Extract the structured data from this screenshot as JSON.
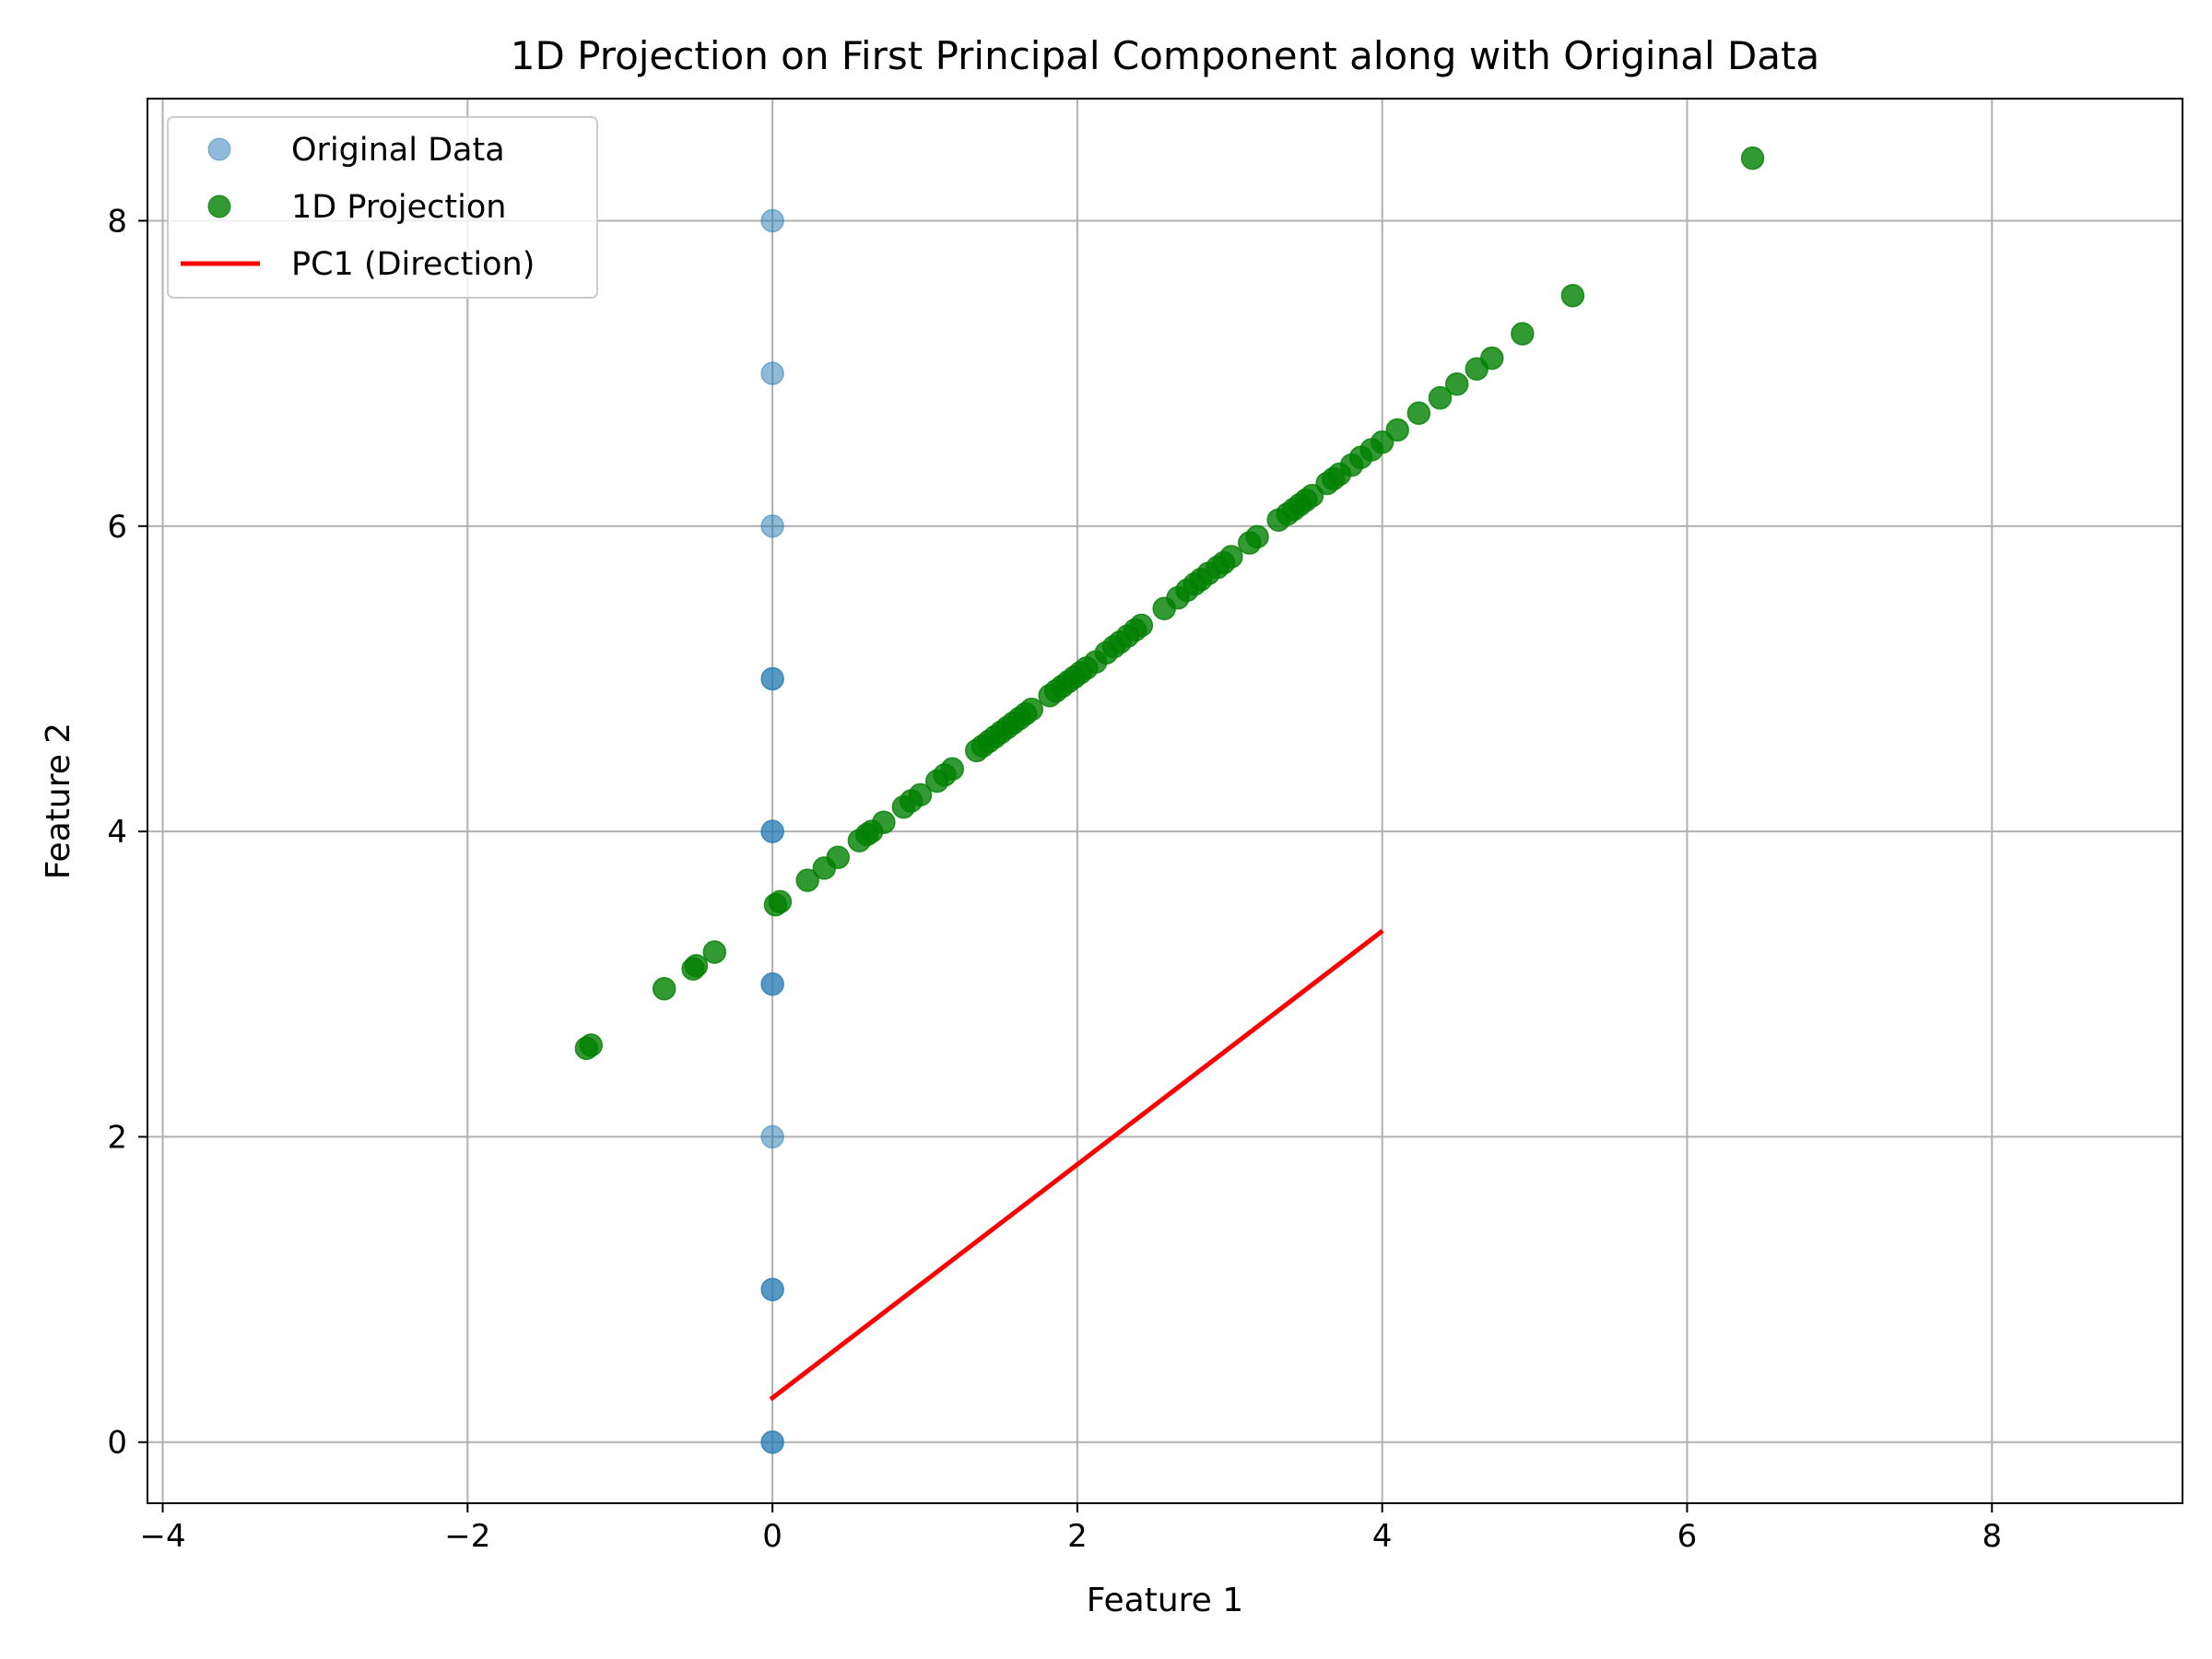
{
  "chart_data": {
    "type": "scatter",
    "title": "1D Projection on First Principal Component along with Original Data",
    "xlabel": "Feature 1",
    "ylabel": "Feature 2",
    "xlim": [
      -4.1,
      9.25
    ],
    "ylim": [
      -0.4,
      8.8
    ],
    "xticks": [
      -4,
      -2,
      0,
      2,
      4,
      6,
      8
    ],
    "yticks": [
      0,
      2,
      4,
      6,
      8
    ],
    "xtick_labels": [
      "−4",
      "−2",
      "0",
      "2",
      "4",
      "6",
      "8"
    ],
    "ytick_labels": [
      "0",
      "2",
      "4",
      "6",
      "8"
    ],
    "grid": true,
    "legend_position": "top-left",
    "colors": {
      "original": "#1f77b4",
      "projection": "#008000",
      "pc1": "#ff0000",
      "grid": "#b0b0b0"
    },
    "series": [
      {
        "name": "Original Data",
        "kind": "scatter",
        "opacity": 0.5,
        "points": [
          [
            0,
            0
          ],
          [
            0,
            1
          ],
          [
            0,
            2
          ],
          [
            0,
            3
          ],
          [
            0,
            4
          ],
          [
            0,
            5
          ],
          [
            0,
            6
          ],
          [
            0,
            7
          ],
          [
            0,
            8
          ],
          [
            0,
            0
          ],
          [
            0,
            1
          ],
          [
            0,
            3
          ],
          [
            0,
            4
          ],
          [
            0,
            5
          ]
        ]
      },
      {
        "name": "1D Projection",
        "kind": "scatter",
        "opacity": 0.8,
        "points": [
          [
            -1.22,
            2.58
          ],
          [
            -1.19,
            2.6
          ],
          [
            -0.71,
            2.97
          ],
          [
            -0.52,
            3.1
          ],
          [
            -0.5,
            3.12
          ],
          [
            -0.38,
            3.21
          ],
          [
            0.02,
            3.52
          ],
          [
            0.05,
            3.54
          ],
          [
            0.23,
            3.68
          ],
          [
            0.34,
            3.76
          ],
          [
            0.43,
            3.83
          ],
          [
            0.57,
            3.94
          ],
          [
            0.62,
            3.98
          ],
          [
            0.65,
            4.0
          ],
          [
            0.73,
            4.06
          ],
          [
            0.86,
            4.16
          ],
          [
            0.91,
            4.2
          ],
          [
            0.97,
            4.24
          ],
          [
            1.08,
            4.33
          ],
          [
            1.13,
            4.37
          ],
          [
            1.18,
            4.41
          ],
          [
            1.34,
            4.53
          ],
          [
            1.38,
            4.56
          ],
          [
            1.42,
            4.59
          ],
          [
            1.46,
            4.62
          ],
          [
            1.5,
            4.65
          ],
          [
            1.54,
            4.68
          ],
          [
            1.58,
            4.71
          ],
          [
            1.62,
            4.74
          ],
          [
            1.66,
            4.77
          ],
          [
            1.7,
            4.8
          ],
          [
            1.82,
            4.89
          ],
          [
            1.86,
            4.92
          ],
          [
            1.9,
            4.95
          ],
          [
            1.94,
            4.98
          ],
          [
            1.98,
            5.01
          ],
          [
            2.02,
            5.04
          ],
          [
            2.06,
            5.07
          ],
          [
            2.12,
            5.11
          ],
          [
            2.19,
            5.17
          ],
          [
            2.24,
            5.21
          ],
          [
            2.28,
            5.24
          ],
          [
            2.33,
            5.28
          ],
          [
            2.38,
            5.32
          ],
          [
            2.42,
            5.35
          ],
          [
            2.57,
            5.46
          ],
          [
            2.66,
            5.53
          ],
          [
            2.72,
            5.58
          ],
          [
            2.77,
            5.62
          ],
          [
            2.81,
            5.65
          ],
          [
            2.86,
            5.69
          ],
          [
            2.92,
            5.73
          ],
          [
            2.96,
            5.76
          ],
          [
            3.01,
            5.8
          ],
          [
            3.13,
            5.89
          ],
          [
            3.18,
            5.93
          ],
          [
            3.32,
            6.04
          ],
          [
            3.38,
            6.08
          ],
          [
            3.42,
            6.11
          ],
          [
            3.46,
            6.14
          ],
          [
            3.5,
            6.17
          ],
          [
            3.54,
            6.2
          ],
          [
            3.64,
            6.28
          ],
          [
            3.68,
            6.31
          ],
          [
            3.72,
            6.34
          ],
          [
            3.8,
            6.4
          ],
          [
            3.86,
            6.45
          ],
          [
            3.93,
            6.5
          ],
          [
            4.0,
            6.55
          ],
          [
            4.1,
            6.63
          ],
          [
            4.24,
            6.74
          ],
          [
            4.38,
            6.84
          ],
          [
            4.49,
            6.93
          ],
          [
            4.62,
            7.03
          ],
          [
            4.72,
            7.1
          ],
          [
            4.92,
            7.26
          ],
          [
            5.25,
            7.51
          ],
          [
            6.43,
            8.41
          ]
        ]
      },
      {
        "name": "PC1 (Direction)",
        "kind": "line",
        "points": [
          [
            0,
            0.29
          ],
          [
            3.99,
            3.34
          ]
        ]
      }
    ]
  }
}
